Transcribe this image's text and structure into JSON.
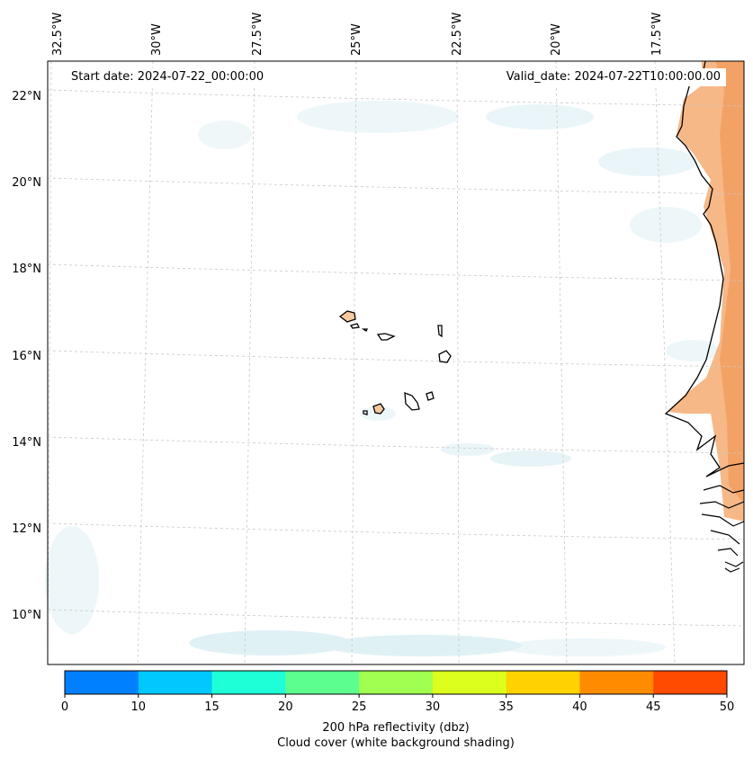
{
  "map": {
    "start_date": "Start date: 2024-07-22_00:00:00",
    "valid_date": "Valid_date: 2024-07-22T10:00:00.00",
    "lon_labels": [
      "32.5°W",
      "30°W",
      "27.5°W",
      "25°W",
      "22.5°W",
      "20°W",
      "17.5°W"
    ],
    "lat_labels": [
      "22°N",
      "20°N",
      "18°N",
      "16°N",
      "14°N",
      "12°N",
      "10°N"
    ]
  },
  "colorbar": {
    "ticks": [
      "0",
      "10",
      "15",
      "20",
      "25",
      "30",
      "35",
      "40",
      "45",
      "50"
    ],
    "colors": [
      "#0080ff",
      "#00c8ff",
      "#1effd8",
      "#5cff8f",
      "#a0ff50",
      "#dcff1e",
      "#ffd200",
      "#ff8c00",
      "#ff4a00"
    ],
    "label": "200 hPa reflectivity (dbz)",
    "sublabel": "Cloud cover (white background shading)"
  },
  "colors": {
    "land_fill": "#f7c9a0",
    "cloud_fill": "#d6ecf2",
    "gridline": "#c8c8c8"
  }
}
